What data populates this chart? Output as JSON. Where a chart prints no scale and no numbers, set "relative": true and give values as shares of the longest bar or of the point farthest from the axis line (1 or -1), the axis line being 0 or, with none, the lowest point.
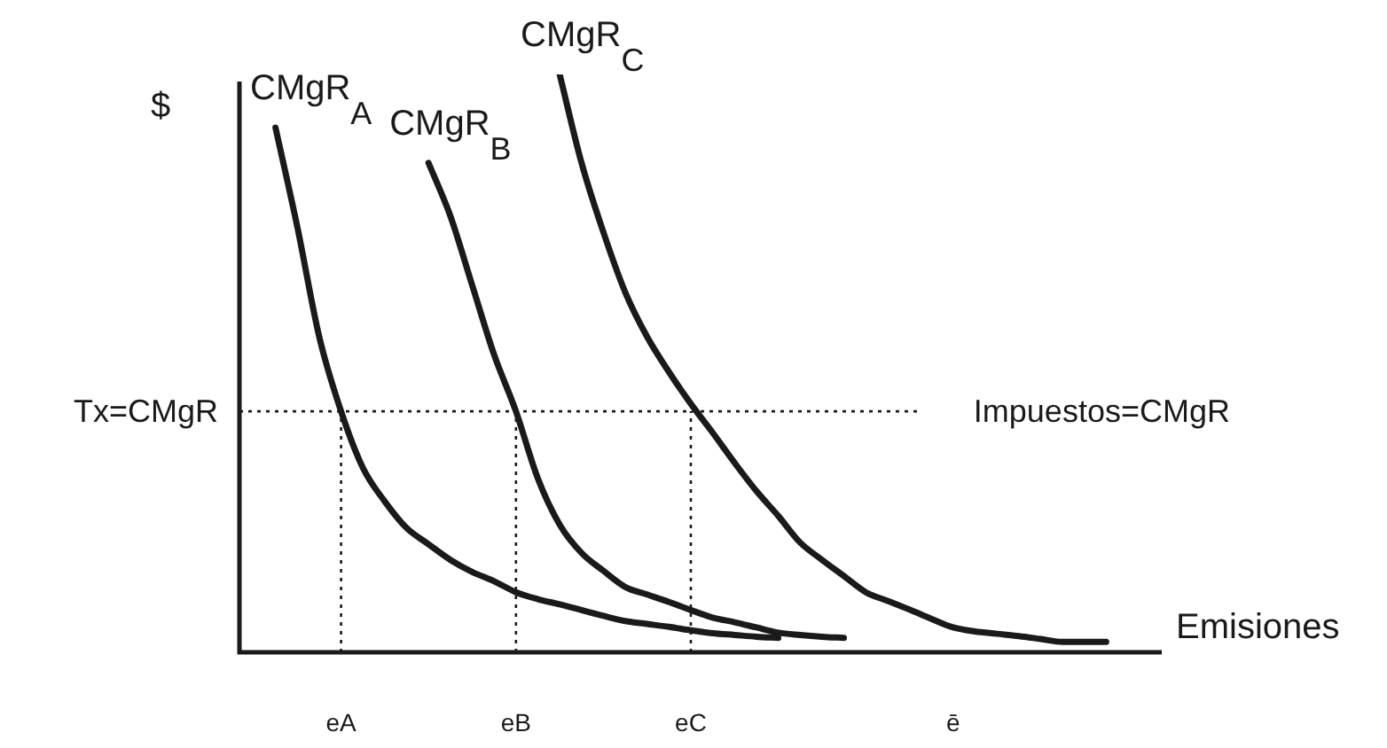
{
  "chart_data": {
    "type": "line",
    "relative": true,
    "ylabel": "$",
    "xlabel": "Emisiones",
    "categories": [
      null,
      null,
      null,
      null,
      "eA",
      null,
      null,
      null,
      null,
      null,
      null,
      null,
      "eB",
      null,
      null,
      null,
      null,
      null,
      null,
      null,
      "eC",
      null,
      null,
      null,
      null,
      null,
      null,
      null,
      null,
      null,
      null,
      null,
      "ē",
      null,
      null,
      null,
      null,
      null,
      null,
      null,
      null
    ],
    "grid": false,
    "legend": false,
    "marker": "none",
    "line_style": "solid",
    "series": [
      {
        "name": "CMgR$_{A}$",
        "color": "#1a1a1a",
        "values": [
          null,
          0.908,
          0.736,
          0.546,
          0.417,
          0.319,
          0.261,
          0.215,
          0.187,
          0.16,
          0.139,
          0.123,
          0.104,
          0.092,
          0.083,
          0.073,
          0.063,
          0.054,
          0.049,
          0.044,
          0.038,
          0.033,
          0.03,
          0.027,
          0.025,
          null,
          null,
          null,
          null,
          null,
          null,
          null,
          null,
          null,
          null,
          null,
          null,
          null,
          null,
          null,
          null
        ]
      },
      {
        "name": "CMgR$_{B}$",
        "color": "#1a1a1a",
        "values": [
          null,
          null,
          null,
          null,
          null,
          null,
          null,
          null,
          0.847,
          0.755,
          0.635,
          0.515,
          0.417,
          0.301,
          0.221,
          0.172,
          0.141,
          0.113,
          0.1,
          0.087,
          0.073,
          0.06,
          0.052,
          0.043,
          0.034,
          0.03,
          0.027,
          0.025,
          null,
          null,
          null,
          null,
          null,
          null,
          null,
          null,
          null,
          null,
          null,
          null,
          null
        ]
      },
      {
        "name": "CMgR$_{C}$",
        "color": "#1a1a1a",
        "values": [
          null,
          null,
          null,
          null,
          null,
          null,
          null,
          null,
          null,
          null,
          null,
          null,
          null,
          null,
          1,
          0.847,
          0.727,
          0.623,
          0.546,
          0.485,
          0.43,
          0.38,
          0.328,
          0.279,
          0.236,
          0.19,
          0.16,
          0.132,
          0.104,
          0.089,
          0.074,
          0.058,
          0.043,
          0.036,
          0.032,
          0.028,
          0.023,
          0.018,
          0.018,
          0.018,
          null
        ]
      }
    ],
    "ref_lines": [
      {
        "axis": "y",
        "value": 0.417,
        "label": "Tx=CMgR",
        "line_style": "dotted"
      },
      {
        "axis": "x",
        "value": "eA",
        "line_style": "dotted"
      },
      {
        "axis": "x",
        "value": "eB",
        "line_style": "dotted"
      },
      {
        "axis": "x",
        "value": "eC",
        "line_style": "dotted"
      }
    ],
    "annotations": [
      "Impuestos=CMgR"
    ]
  }
}
